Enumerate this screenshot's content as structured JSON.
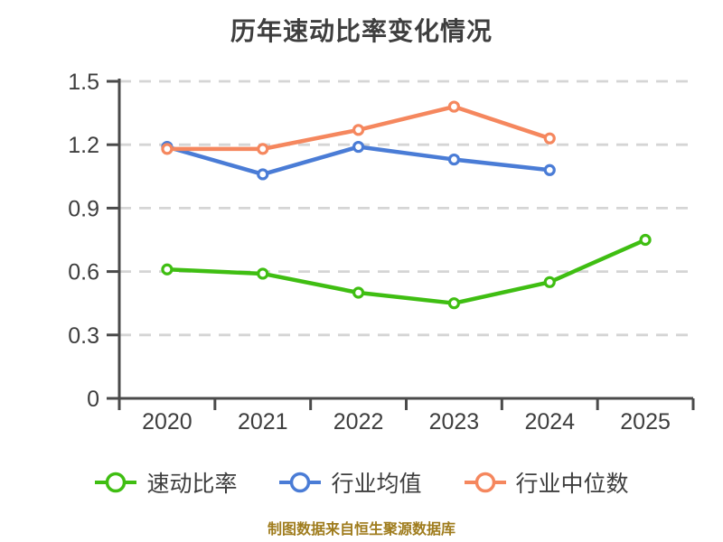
{
  "chart_data": {
    "type": "line",
    "title": "历年速动比率变化情况",
    "categories": [
      "2020",
      "2021",
      "2022",
      "2023",
      "2024",
      "2025"
    ],
    "series": [
      {
        "name": "速动比率",
        "color": "#3FBE12",
        "values": [
          0.61,
          0.59,
          0.5,
          0.45,
          0.55,
          0.75
        ]
      },
      {
        "name": "行业均值",
        "color": "#4A7CD6",
        "values": [
          1.19,
          1.06,
          1.19,
          1.13,
          1.08,
          null
        ]
      },
      {
        "name": "行业中位数",
        "color": "#F5875E",
        "values": [
          1.18,
          1.18,
          1.27,
          1.38,
          1.23,
          null
        ]
      }
    ],
    "ylim": [
      0,
      1.5
    ],
    "yticks": [
      0,
      0.3,
      0.6,
      0.9,
      1.2,
      1.5
    ],
    "ytick_labels": [
      "0",
      "0.3",
      "0.6",
      "0.9",
      "1.2",
      "1.5"
    ],
    "xlabel": "",
    "ylabel": "",
    "grid": true,
    "grid_style": "dashed",
    "legend_position": "bottom",
    "marker": "hollow-circle"
  },
  "footer": {
    "text": "制图数据来自恒生聚源数据库",
    "color": "#9F7C1D"
  },
  "style": {
    "axis_color": "#4A4A4A",
    "grid_color": "#D5D5D5",
    "text_color": "#3E3E3E",
    "background": "#FFFFFF"
  }
}
